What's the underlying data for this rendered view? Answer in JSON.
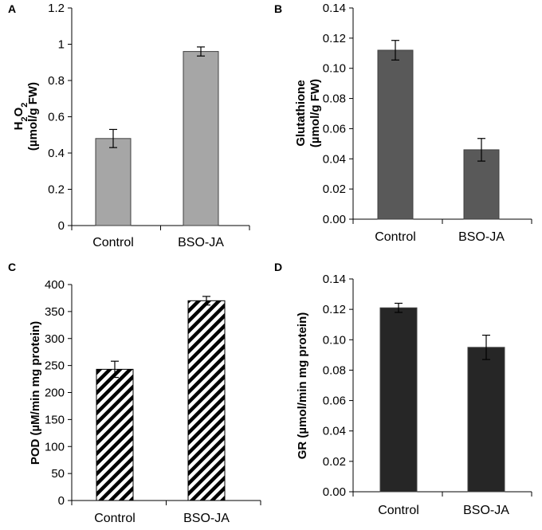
{
  "chart_data": [
    {
      "panel": "A",
      "type": "bar",
      "categories": [
        "Control",
        "BSO-JA"
      ],
      "values": [
        0.48,
        0.96
      ],
      "errors": [
        0.05,
        0.025
      ],
      "ylabel_line1": "H2O2",
      "ylabel_line2": "(µmol/g FW)",
      "ylim": [
        0,
        1.2
      ],
      "yticks": [
        "0",
        "0.2",
        "0.4",
        "0.6",
        "0.8",
        "1",
        "1.2"
      ],
      "bar_color": "#a6a6a6",
      "pattern": "solid"
    },
    {
      "panel": "B",
      "type": "bar",
      "categories": [
        "Control",
        "BSO-JA"
      ],
      "values": [
        0.112,
        0.046
      ],
      "errors": [
        0.0065,
        0.0075
      ],
      "ylabel_line1": "Glutathione",
      "ylabel_line2": "(µmol/g FW)",
      "ylim": [
        0,
        0.14
      ],
      "yticks": [
        "0.00",
        "0.02",
        "0.04",
        "0.06",
        "0.08",
        "0.10",
        "0.12",
        "0.14"
      ],
      "bar_color": "#595959",
      "pattern": "solid"
    },
    {
      "panel": "C",
      "type": "bar",
      "categories": [
        "Control",
        "BSO-JA"
      ],
      "values": [
        243,
        370
      ],
      "errors": [
        15,
        8
      ],
      "ylabel_line1": "POD (µM/min mg protein)",
      "ylabel_line2": "",
      "ylim": [
        0,
        400
      ],
      "yticks": [
        "0",
        "50",
        "100",
        "150",
        "200",
        "250",
        "300",
        "350",
        "400"
      ],
      "bar_color": "#000000",
      "pattern": "hatch"
    },
    {
      "panel": "D",
      "type": "bar",
      "categories": [
        "Control",
        "BSO-JA"
      ],
      "values": [
        0.121,
        0.095
      ],
      "errors": [
        0.003,
        0.008
      ],
      "ylabel_line1": "GR (µmol/min mg protein)",
      "ylabel_line2": "",
      "ylim": [
        0,
        0.14
      ],
      "yticks": [
        "0.00",
        "0.02",
        "0.04",
        "0.06",
        "0.08",
        "0.10",
        "0.12",
        "0.14"
      ],
      "bar_color": "#262626",
      "pattern": "solid"
    }
  ]
}
